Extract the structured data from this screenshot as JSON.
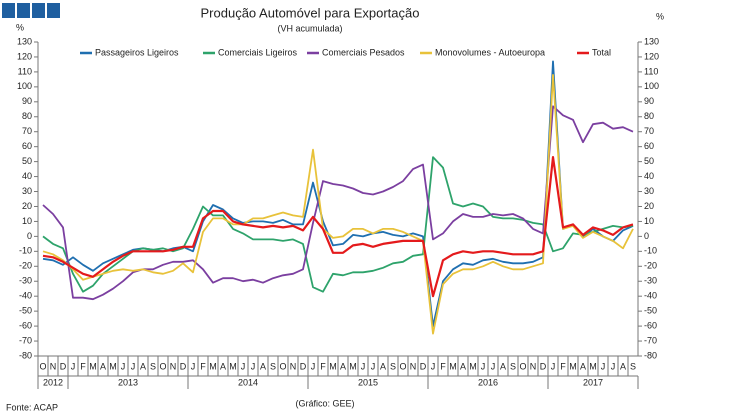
{
  "chart_data": {
    "type": "line",
    "title": "Produção Automóvel para Exportação",
    "subtitle": "(VH acumulada)",
    "ylabel": "%",
    "y2label": "%",
    "source": "Fonte: ACAP",
    "credit": "(Gráfico: GEE)",
    "categories": [
      "O",
      "N",
      "D",
      "J",
      "F",
      "M",
      "A",
      "M",
      "J",
      "J",
      "A",
      "S",
      "O",
      "N",
      "D",
      "J",
      "F",
      "M",
      "A",
      "M",
      "J",
      "J",
      "A",
      "S",
      "O",
      "N",
      "D",
      "J",
      "F",
      "M",
      "A",
      "M",
      "J",
      "J",
      "A",
      "S",
      "O",
      "N",
      "D",
      "J",
      "F",
      "M",
      "A",
      "M",
      "J",
      "J",
      "A",
      "S",
      "O",
      "N",
      "D",
      "J",
      "F",
      "M",
      "A",
      "M",
      "J",
      "J",
      "A",
      "S"
    ],
    "years": [
      "2012",
      "2013",
      "2014",
      "2015",
      "2016",
      "2017"
    ],
    "ylim": [
      -80,
      130
    ],
    "yticks": [
      -80,
      -70,
      -60,
      -50,
      -40,
      -30,
      -20,
      -10,
      0,
      10,
      20,
      30,
      40,
      50,
      60,
      70,
      80,
      90,
      100,
      110,
      120,
      130
    ],
    "y2lim": [
      -80,
      130
    ],
    "y2ticks": [
      -80,
      -70,
      -60,
      -50,
      -40,
      -30,
      -20,
      -10,
      0,
      10,
      20,
      30,
      40,
      50,
      60,
      70,
      80,
      90,
      100,
      110,
      120,
      130
    ],
    "series": [
      {
        "name": "Passageiros Ligeiros",
        "color": "#1f6fb0",
        "values": [
          -15,
          -16,
          -19,
          -14,
          -19,
          -23,
          -18,
          -15,
          -12,
          -9,
          -8,
          -9,
          -10,
          -8,
          -7,
          -10,
          10,
          21,
          18,
          12,
          9,
          10,
          10,
          9,
          11,
          8,
          8,
          36,
          10,
          -6,
          -5,
          1,
          0,
          2,
          3,
          1,
          0,
          2,
          0,
          -60,
          -30,
          -22,
          -18,
          -19,
          -16,
          -15,
          -17,
          -18,
          -18,
          -17,
          -14,
          117,
          5,
          8,
          0,
          5,
          0,
          -3,
          4,
          7
        ]
      },
      {
        "name": "Comerciais Ligeiros",
        "color": "#2ea36b",
        "values": [
          0,
          -5,
          -8,
          -25,
          -37,
          -33,
          -25,
          -20,
          -15,
          -10,
          -8,
          -9,
          -8,
          -10,
          -8,
          5,
          20,
          14,
          14,
          5,
          2,
          -2,
          -2,
          -2,
          -3,
          -2,
          -5,
          -34,
          -37,
          -25,
          -26,
          -24,
          -24,
          -23,
          -21,
          -18,
          -17,
          -13,
          -12,
          53,
          46,
          22,
          20,
          22,
          20,
          13,
          12,
          12,
          11,
          9,
          8,
          -10,
          -8,
          2,
          1,
          3,
          5,
          7,
          6,
          7
        ]
      },
      {
        "name": "Comerciais Pesados",
        "color": "#7b3fa0",
        "values": [
          21,
          15,
          6,
          -41,
          -41,
          -42,
          -39,
          -35,
          -30,
          -24,
          -22,
          -22,
          -19,
          -17,
          -17,
          -16,
          -22,
          -31,
          -28,
          -28,
          -30,
          -29,
          -31,
          -28,
          -26,
          -25,
          -22,
          9,
          37,
          35,
          34,
          32,
          29,
          28,
          30,
          33,
          37,
          45,
          48,
          -2,
          2,
          10,
          15,
          13,
          13,
          15,
          14,
          15,
          12,
          5,
          2,
          87,
          81,
          78,
          63,
          75,
          76,
          72,
          73,
          70
        ]
      },
      {
        "name": "Monovolumes - Autoeuropa",
        "color": "#e8c23a",
        "values": [
          -10,
          -12,
          -16,
          -22,
          -29,
          -27,
          -25,
          -23,
          -22,
          -23,
          -22,
          -24,
          -25,
          -23,
          -18,
          -24,
          3,
          12,
          12,
          8,
          8,
          12,
          12,
          14,
          16,
          14,
          13,
          58,
          5,
          -1,
          0,
          5,
          5,
          2,
          5,
          5,
          3,
          0,
          -3,
          -65,
          -32,
          -25,
          -22,
          -22,
          -20,
          -17,
          -20,
          -22,
          -22,
          -20,
          -18,
          108,
          5,
          7,
          -1,
          3,
          0,
          -3,
          -8,
          5
        ]
      },
      {
        "name": "Total",
        "color": "#e41a1c",
        "values": [
          -13,
          -14,
          -17,
          -21,
          -25,
          -27,
          -22,
          -17,
          -13,
          -10,
          -10,
          -10,
          -10,
          -9,
          -7,
          -7,
          12,
          17,
          17,
          10,
          8,
          7,
          6,
          7,
          6,
          7,
          4,
          13,
          5,
          -11,
          -11,
          -6,
          -5,
          -7,
          -5,
          -4,
          -3,
          -3,
          -3,
          -40,
          -16,
          -12,
          -10,
          -11,
          -10,
          -10,
          -11,
          -12,
          -12,
          -12,
          -10,
          53,
          6,
          8,
          1,
          6,
          4,
          1,
          6,
          8
        ]
      }
    ]
  }
}
